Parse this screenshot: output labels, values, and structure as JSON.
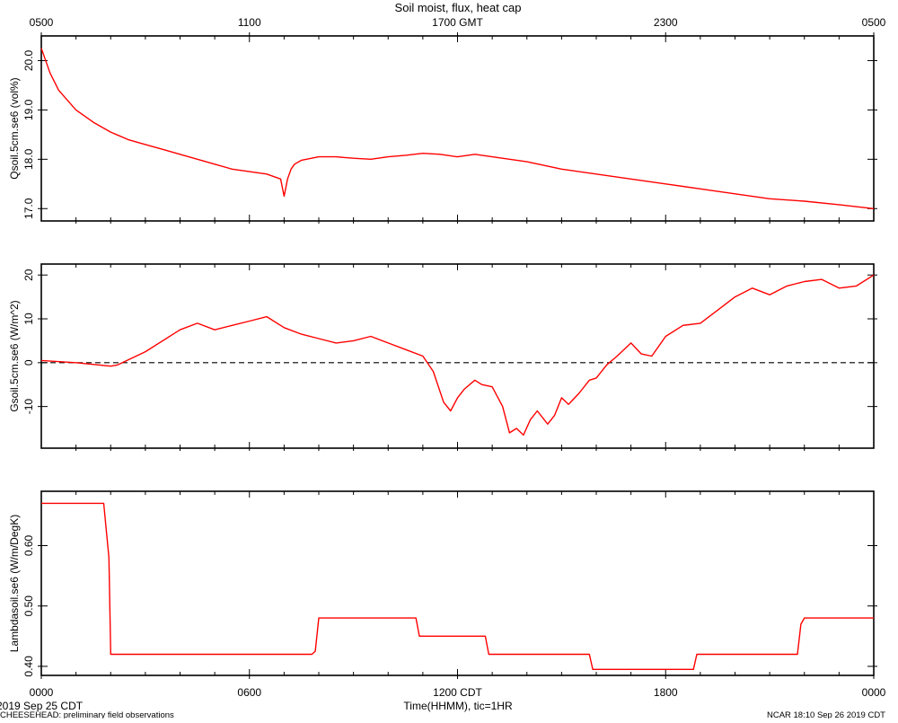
{
  "page": {
    "title": "Soil moist, flux, heat cap",
    "footer_left": "CHEESEHEAD: preliminary field observations",
    "footer_right": "NCAR 18:10 Sep 26 2019 CDT",
    "start_date": "2019 Sep 25 CDT",
    "xlabel": "Time(HHMM), tic=1HR"
  },
  "colors": {
    "series": "#ff0000",
    "axes": "#000000",
    "background": "#ffffff"
  },
  "chart_data": [
    {
      "type": "line",
      "ylabel": "Qsoil.5cm.se6 (vol%)",
      "ylim": [
        16.75,
        20.5
      ],
      "yticks": [
        "17.0",
        "18.0",
        "19.0",
        "20.0"
      ],
      "top_axis": {
        "label_ticks": [
          "0500",
          "1100",
          "1700 GMT",
          "2300",
          "0500"
        ]
      },
      "x": [
        0,
        0.25,
        0.5,
        1,
        1.5,
        2,
        2.5,
        3,
        3.5,
        4,
        4.5,
        5,
        5.5,
        6,
        6.5,
        6.9,
        7.0,
        7.1,
        7.2,
        7.3,
        7.5,
        8,
        8.5,
        9,
        9.5,
        10,
        10.5,
        11,
        11.5,
        12,
        12.5,
        13,
        13.5,
        14,
        15,
        16,
        17,
        18,
        19,
        20,
        21,
        22,
        23,
        24
      ],
      "y": [
        20.25,
        19.75,
        19.4,
        19.0,
        18.75,
        18.55,
        18.4,
        18.3,
        18.2,
        18.1,
        18.0,
        17.9,
        17.8,
        17.75,
        17.7,
        17.6,
        17.25,
        17.6,
        17.8,
        17.9,
        17.98,
        18.05,
        18.05,
        18.02,
        18.0,
        18.05,
        18.08,
        18.12,
        18.1,
        18.05,
        18.1,
        18.05,
        18.0,
        17.95,
        17.8,
        17.7,
        17.6,
        17.5,
        17.4,
        17.3,
        17.2,
        17.15,
        17.08,
        17.0
      ]
    },
    {
      "type": "line",
      "ylabel": "Gsoil.5cm.se6 (W/m^2)",
      "ylim": [
        -19.5,
        22.5
      ],
      "yticks": [
        "-10",
        "0",
        "10",
        "20"
      ],
      "reference_line": 0,
      "x": [
        0,
        1,
        2,
        2.2,
        3,
        4,
        4.5,
        5,
        5.5,
        6,
        6.5,
        7,
        7.5,
        8,
        8.5,
        9,
        9.5,
        10,
        10.5,
        11,
        11.3,
        11.6,
        11.8,
        12,
        12.2,
        12.5,
        12.7,
        13,
        13.3,
        13.5,
        13.7,
        13.9,
        14.1,
        14.3,
        14.6,
        14.8,
        15.0,
        15.2,
        15.5,
        15.8,
        16.0,
        16.3,
        16.6,
        17,
        17.3,
        17.6,
        18,
        18.5,
        19,
        19.5,
        20,
        20.5,
        21,
        21.5,
        22,
        22.5,
        23,
        23.5,
        24
      ],
      "y": [
        0.5,
        0,
        -0.8,
        -0.5,
        2.5,
        7.5,
        9.0,
        7.5,
        8.5,
        9.5,
        10.5,
        8.0,
        6.5,
        5.5,
        4.5,
        5.0,
        6.0,
        4.5,
        3.0,
        1.5,
        -2.0,
        -9.0,
        -11.0,
        -8.0,
        -6.0,
        -4.0,
        -5.0,
        -5.5,
        -10.0,
        -16.0,
        -15.0,
        -16.5,
        -13.0,
        -11.0,
        -14.0,
        -12.0,
        -8.0,
        -9.5,
        -7.0,
        -4.0,
        -3.5,
        -0.5,
        1.5,
        4.5,
        2.0,
        1.5,
        6.0,
        8.5,
        9.0,
        12.0,
        15.0,
        17.0,
        15.5,
        17.5,
        18.5,
        19.0,
        17.0,
        17.5,
        20.0
      ]
    },
    {
      "type": "line",
      "ylabel": "Lambdasoil.se6 (W/m/DegK)",
      "ylim": [
        0.385,
        0.69
      ],
      "yticks": [
        "0.40",
        "0.50",
        "0.60"
      ],
      "bottom_axis": {
        "label_ticks": [
          "0000",
          "0600",
          "1200 CDT",
          "1800",
          "0000"
        ]
      },
      "x": [
        0,
        1.8,
        1.95,
        2.0,
        7.8,
        7.9,
        8.0,
        10.8,
        10.9,
        12.8,
        12.9,
        15.8,
        15.9,
        18.8,
        18.9,
        21.8,
        21.9,
        22.0,
        24
      ],
      "y": [
        0.67,
        0.67,
        0.58,
        0.42,
        0.42,
        0.425,
        0.48,
        0.48,
        0.45,
        0.45,
        0.42,
        0.42,
        0.395,
        0.395,
        0.42,
        0.42,
        0.47,
        0.48,
        0.48
      ]
    }
  ]
}
